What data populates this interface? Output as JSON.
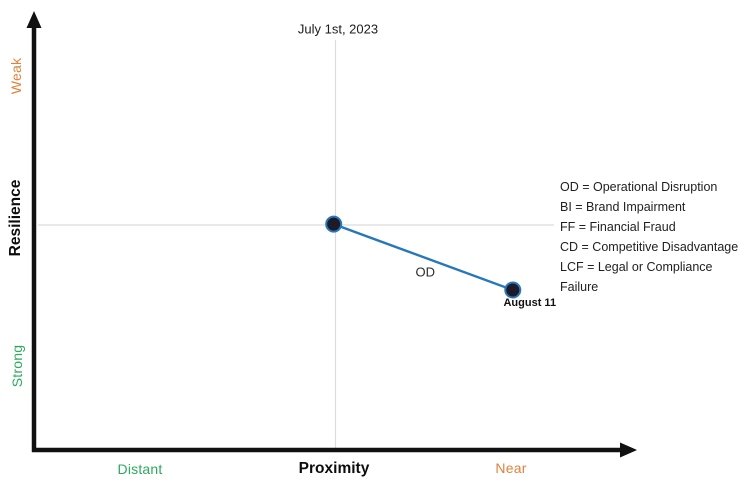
{
  "chart_data": {
    "type": "scatter",
    "title": "July 1st, 2023",
    "xlabel": "Proximity",
    "ylabel": "Resilience",
    "x_end_labels": {
      "low": "Distant",
      "high": "Near"
    },
    "y_end_labels": {
      "low": "Strong",
      "high": "Weak"
    },
    "series": [
      {
        "name": "OD",
        "points": [
          {
            "label": "July 1st, 2023",
            "x": 0.497,
            "y": 0.518
          },
          {
            "label": "August 11",
            "x": 0.794,
            "y": 0.367
          }
        ]
      }
    ],
    "gridlines": {
      "vertical_x": 0.5,
      "horizontal_y": 0.516
    },
    "legend": [
      "OD = Operational Disruption",
      "BI = Brand Impairment",
      "FF = Financial Fraud",
      "CD = Competitive Disadvantage",
      "LCF = Legal or Compliance Failure"
    ],
    "legend_position": "right-middle",
    "grid": "center-cross-only"
  },
  "colors": {
    "orange": "#e0823c",
    "green": "#2baa5e",
    "blue": "#2878b9",
    "dot": "#1b1b29",
    "grid": "#dcdcdc",
    "axis": "#111111"
  }
}
